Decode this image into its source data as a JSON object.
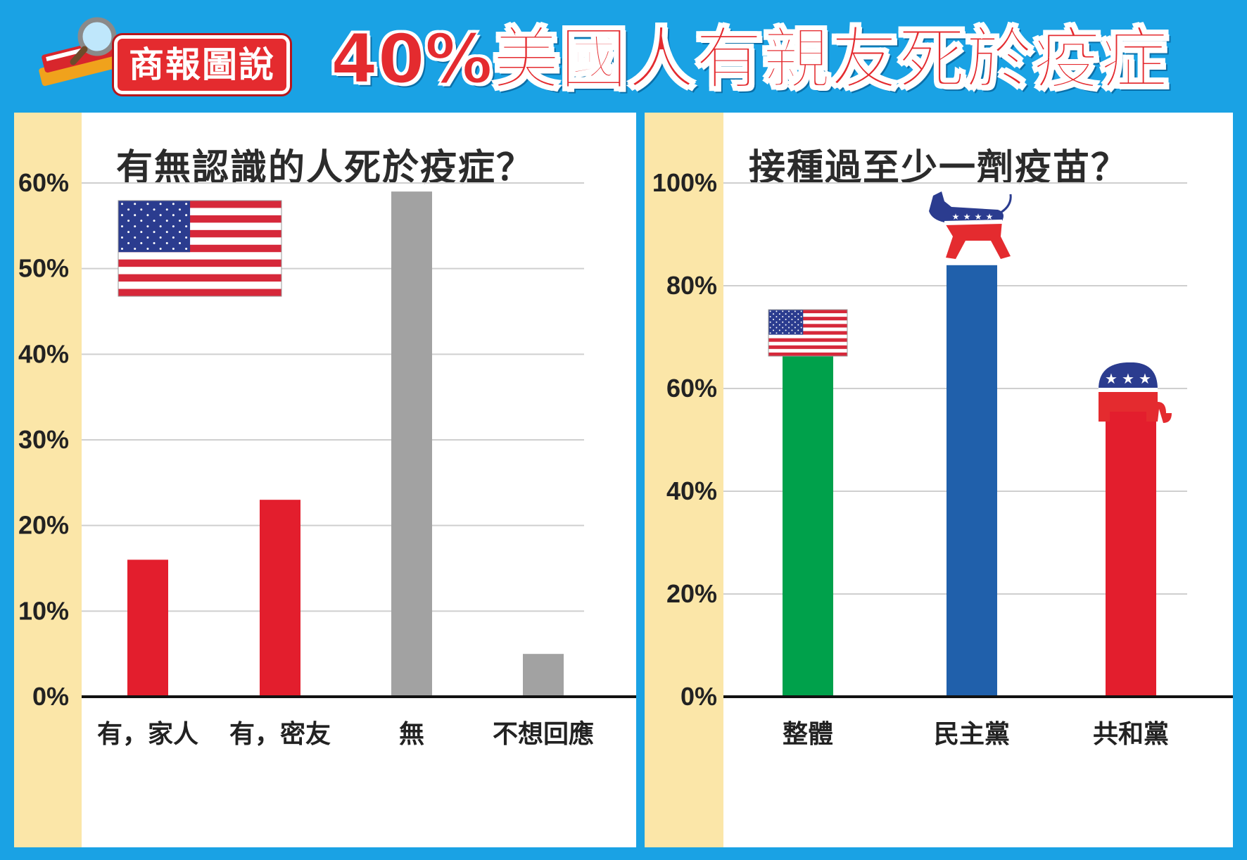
{
  "banner": {
    "badge_text": "商報圖說",
    "headline": "40%美國人有親友死於疫症",
    "colors": {
      "background": "#1aa2e4",
      "headline": "#e42b2f",
      "badge": "#e42b2f"
    },
    "icon": "book-magnifier-icon"
  },
  "chart_data": [
    {
      "type": "bar",
      "title": "有無認識的人死於疫症？",
      "categories": [
        "有，家人",
        "有，密友",
        "無",
        "不想回應"
      ],
      "values": [
        16,
        23,
        59,
        5
      ],
      "colors": [
        "#e31e2d",
        "#e31e2d",
        "#a2a2a2",
        "#a2a2a2"
      ],
      "ylim": [
        0,
        60
      ],
      "yticks": [
        "0%",
        "10%",
        "20%",
        "30%",
        "40%",
        "50%",
        "60%"
      ],
      "grid": true,
      "icon": "us-flag-icon"
    },
    {
      "type": "bar",
      "title": "接種過至少一劑疫苗？",
      "categories": [
        "整體",
        "民主黨",
        "共和黨"
      ],
      "values": [
        70,
        84,
        58
      ],
      "colors": [
        "#00a14b",
        "#2060ab",
        "#e31e2d"
      ],
      "ylim": [
        0,
        100
      ],
      "yticks": [
        "0%",
        "20%",
        "40%",
        "60%",
        "80%",
        "100%"
      ],
      "grid": true,
      "icons": [
        "us-flag-icon",
        "democrat-donkey-icon",
        "republican-elephant-icon"
      ]
    }
  ]
}
